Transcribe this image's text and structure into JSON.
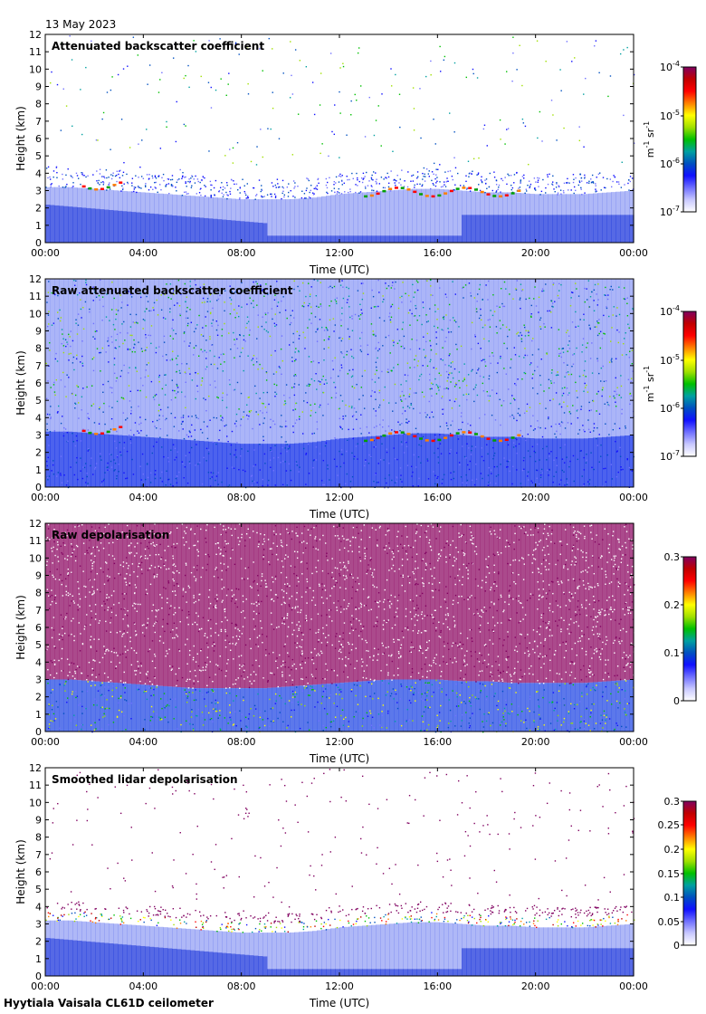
{
  "header": {
    "date": "13 May 2023"
  },
  "footer": {
    "site": "Hyytiala Vaisala CL61D ceilometer"
  },
  "colors": {
    "scale": [
      "#ffffff",
      "#c8c8ff",
      "#7070ff",
      "#1010ff",
      "#0050c0",
      "#00a0a0",
      "#00c000",
      "#a0e000",
      "#ffff00",
      "#ff8000",
      "#ff0000",
      "#c00000",
      "#800060"
    ]
  },
  "chart_data": [
    {
      "type": "heatmap",
      "id": "backscatter",
      "title": "Attenuated backscatter coefficient",
      "xlabel": "Time (UTC)",
      "ylabel": "Height (km)",
      "xticks": [
        "00:00",
        "04:00",
        "08:00",
        "12:00",
        "16:00",
        "20:00",
        "00:00"
      ],
      "xlim": [
        0,
        24
      ],
      "ylim": [
        0,
        12
      ],
      "yticks": [
        "0",
        "1",
        "2",
        "3",
        "4",
        "5",
        "6",
        "7",
        "8",
        "9",
        "10",
        "11",
        "12"
      ],
      "colorbar": {
        "scale": "log",
        "ticks": [
          {
            "base": "10",
            "exp": "-4",
            "value": 0.0001
          },
          {
            "base": "10",
            "exp": "-5",
            "value": 1e-05
          },
          {
            "base": "10",
            "exp": "-6",
            "value": 1e-06
          },
          {
            "base": "10",
            "exp": "-7",
            "value": 1e-07
          }
        ],
        "unit": {
          "a": "m",
          "a_exp": "-1",
          "b": "sr",
          "b_exp": "-1"
        }
      },
      "boundary_layer_top_km": [
        3.2,
        3.2,
        3.1,
        3.0,
        2.9,
        2.8,
        2.7,
        2.6,
        2.5,
        2.5,
        2.5,
        2.6,
        2.8,
        2.9,
        3.0,
        3.1,
        3.1,
        3.0,
        2.9,
        2.9,
        2.8,
        2.8,
        2.8,
        2.9,
        3.0
      ],
      "cloud_layers": [
        {
          "t0": 1.5,
          "t1": 3.2,
          "h": 3.3
        },
        {
          "t0": 13.0,
          "t1": 19.5,
          "h": 2.9
        }
      ],
      "noise_density": "low"
    },
    {
      "type": "heatmap",
      "id": "raw_backscatter",
      "title": "Raw attenuated backscatter coefficient",
      "xlabel": "Time (UTC)",
      "ylabel": "Height (km)",
      "xticks": [
        "00:00",
        "04:00",
        "08:00",
        "12:00",
        "16:00",
        "20:00",
        "00:00"
      ],
      "xlim": [
        0,
        24
      ],
      "ylim": [
        0,
        12
      ],
      "yticks": [
        "0",
        "1",
        "2",
        "3",
        "4",
        "5",
        "6",
        "7",
        "8",
        "9",
        "10",
        "11",
        "12"
      ],
      "colorbar": {
        "scale": "log",
        "ticks": [
          {
            "base": "10",
            "exp": "-4",
            "value": 0.0001
          },
          {
            "base": "10",
            "exp": "-5",
            "value": 1e-05
          },
          {
            "base": "10",
            "exp": "-6",
            "value": 1e-06
          },
          {
            "base": "10",
            "exp": "-7",
            "value": 1e-07
          }
        ],
        "unit": {
          "a": "m",
          "a_exp": "-1",
          "b": "sr",
          "b_exp": "-1"
        }
      },
      "boundary_layer_top_km": [
        3.2,
        3.2,
        3.1,
        3.0,
        2.9,
        2.8,
        2.7,
        2.6,
        2.5,
        2.5,
        2.5,
        2.6,
        2.8,
        2.9,
        3.0,
        3.1,
        3.1,
        3.0,
        2.9,
        2.9,
        2.8,
        2.8,
        2.8,
        2.9,
        3.0
      ],
      "cloud_layers": [
        {
          "t0": 1.5,
          "t1": 3.2,
          "h": 3.3
        },
        {
          "t0": 13.0,
          "t1": 19.5,
          "h": 2.9
        }
      ],
      "noise_density": "high"
    },
    {
      "type": "heatmap",
      "id": "raw_depol",
      "title": "Raw depolarisation",
      "xlabel": "Time (UTC)",
      "ylabel": "Height (km)",
      "xticks": [
        "00:00",
        "04:00",
        "08:00",
        "12:00",
        "16:00",
        "20:00",
        "00:00"
      ],
      "xlim": [
        0,
        24
      ],
      "ylim": [
        0,
        12
      ],
      "yticks": [
        "0",
        "1",
        "2",
        "3",
        "4",
        "5",
        "6",
        "7",
        "8",
        "9",
        "10",
        "11",
        "12"
      ],
      "colorbar": {
        "scale": "linear",
        "range": [
          0,
          0.3
        ],
        "ticks": [
          "0",
          "0.1",
          "0.2",
          "0.3"
        ]
      },
      "boundary_layer_top_km": [
        3.0,
        3.0,
        2.9,
        2.8,
        2.7,
        2.6,
        2.5,
        2.5,
        2.5,
        2.5,
        2.6,
        2.7,
        2.8,
        2.9,
        3.0,
        3.0,
        3.0,
        2.9,
        2.9,
        2.8,
        2.8,
        2.8,
        2.8,
        2.9,
        3.0
      ],
      "noise_density": "full"
    },
    {
      "type": "heatmap",
      "id": "smoothed_depol",
      "title": "Smoothed lidar depolarisation",
      "xlabel": "Time (UTC)",
      "ylabel": "Height (km)",
      "xticks": [
        "00:00",
        "04:00",
        "08:00",
        "12:00",
        "16:00",
        "20:00",
        "00:00"
      ],
      "xlim": [
        0,
        24
      ],
      "ylim": [
        0,
        12
      ],
      "yticks": [
        "0",
        "1",
        "2",
        "3",
        "4",
        "5",
        "6",
        "7",
        "8",
        "9",
        "10",
        "11",
        "12"
      ],
      "colorbar": {
        "scale": "linear",
        "range": [
          0,
          0.3
        ],
        "ticks": [
          "0",
          "0.05",
          "0.1",
          "0.15",
          "0.2",
          "0.25",
          "0.3"
        ]
      },
      "boundary_layer_top_km": [
        3.2,
        3.2,
        3.1,
        3.0,
        2.9,
        2.8,
        2.7,
        2.6,
        2.5,
        2.5,
        2.5,
        2.6,
        2.8,
        2.9,
        3.0,
        3.1,
        3.1,
        3.0,
        2.9,
        2.9,
        2.8,
        2.8,
        2.8,
        2.9,
        3.0
      ],
      "noise_density": "sparse"
    }
  ]
}
